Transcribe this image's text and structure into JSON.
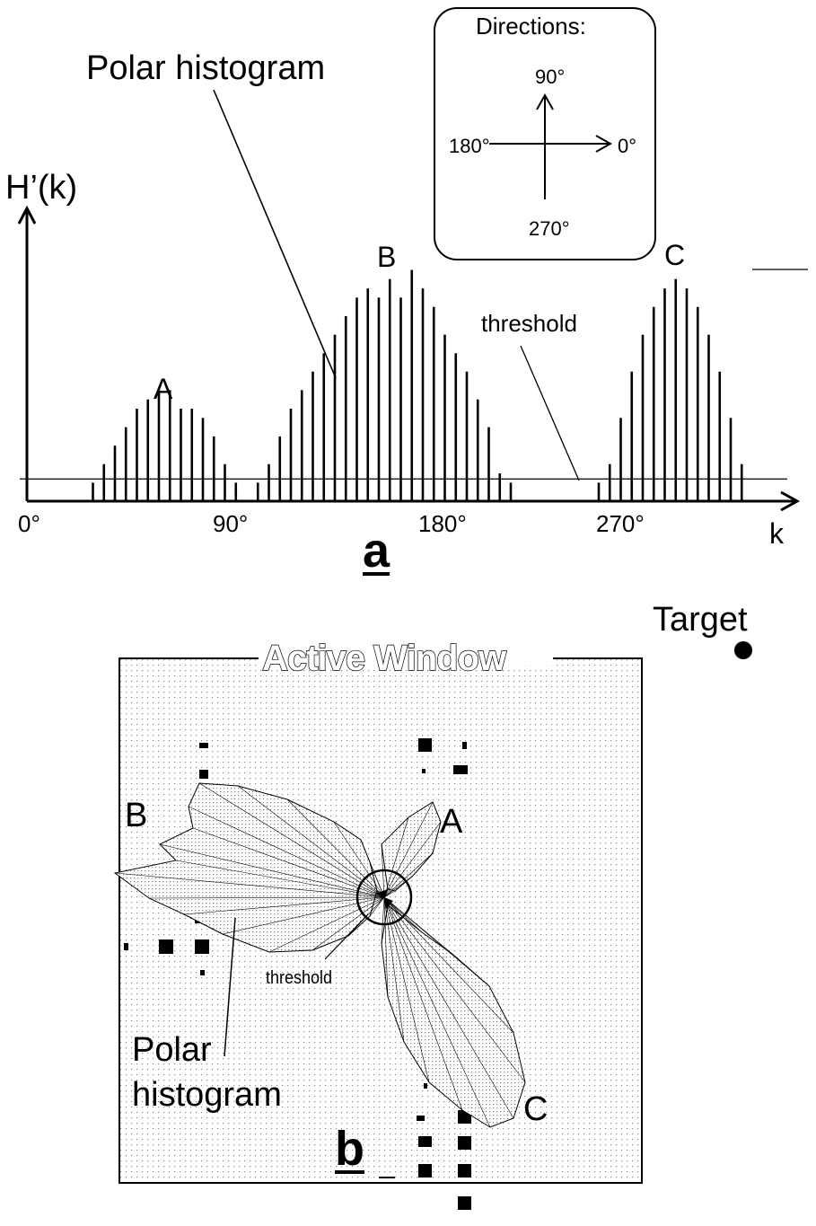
{
  "panel_a": {
    "letter": "a",
    "y_axis_label": "H’(k)",
    "x_axis_label": "k",
    "x_ticks": [
      "0°",
      "90°",
      "180°",
      "270°"
    ],
    "polar_hist_callout": "Polar histogram",
    "threshold_label": "threshold",
    "peak_labels": [
      "A",
      "B",
      "C"
    ],
    "directions": {
      "title": "Directions:",
      "up": "90°",
      "right": "0°",
      "left": "180°",
      "down": "270°"
    }
  },
  "panel_b": {
    "letter": "b",
    "window_title": "Active Window",
    "target_label": "Target",
    "threshold_label": "threshold",
    "polar_hist_label_line1": "Polar",
    "polar_hist_label_line2": "histogram",
    "lobe_labels": [
      "A",
      "B",
      "C"
    ]
  },
  "chart_data": {
    "type": "bar",
    "xlabel": "k",
    "ylabel": "H’(k)",
    "x_ticks": [
      "0°",
      "90°",
      "180°",
      "270°"
    ],
    "threshold": 4,
    "bar_spacing_deg": 5,
    "sectors_deg": [
      30,
      35,
      40,
      45,
      50,
      55,
      60,
      65,
      70,
      75,
      80,
      85,
      90,
      95,
      105,
      110,
      115,
      120,
      125,
      130,
      135,
      140,
      145,
      150,
      155,
      160,
      165,
      170,
      175,
      180,
      185,
      190,
      195,
      200,
      205,
      210,
      215,
      220,
      260,
      265,
      270,
      275,
      280,
      285,
      290,
      295,
      300,
      305,
      310,
      315,
      320,
      325
    ],
    "values": [
      2,
      4,
      6,
      8,
      10,
      11,
      12,
      12,
      10,
      10,
      9,
      7,
      4,
      2,
      2,
      4,
      7,
      10,
      12,
      14,
      16,
      18,
      20,
      22,
      23,
      22,
      24,
      22,
      25,
      23,
      21,
      18,
      16,
      14,
      11,
      8,
      3,
      2,
      2,
      4,
      9,
      14,
      18,
      21,
      23,
      24,
      23,
      21,
      18,
      14,
      9,
      4
    ]
  }
}
